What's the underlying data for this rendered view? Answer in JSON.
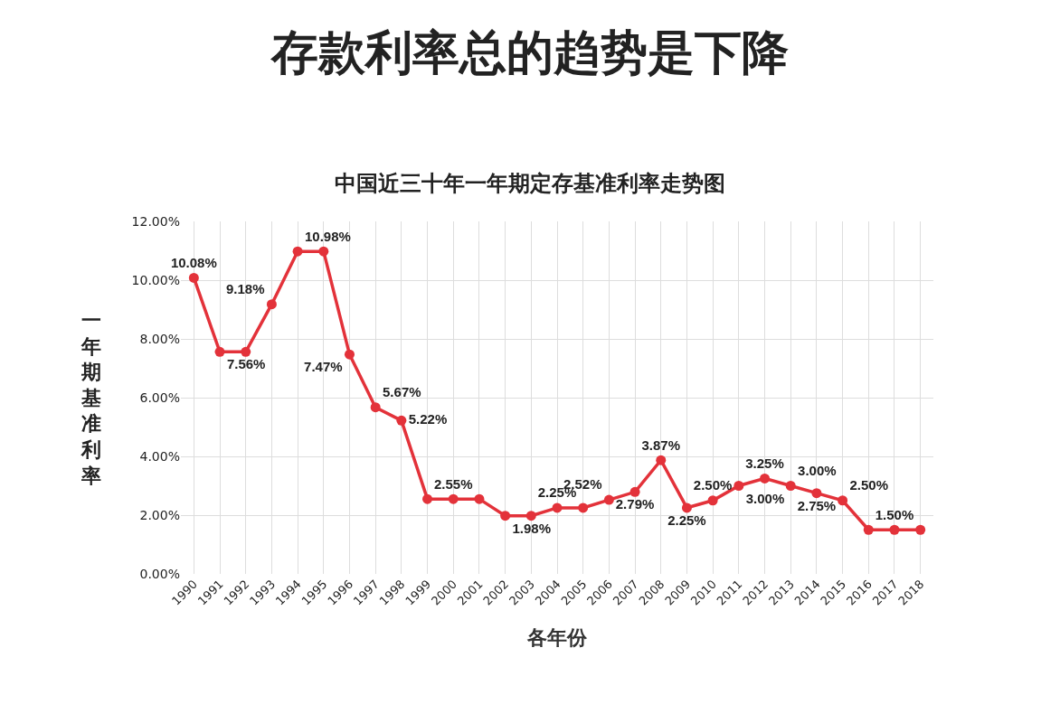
{
  "chart_data": {
    "type": "line",
    "title": "存款利率总的趋势是下降",
    "subtitle": "中国近三十年一年期定存基准利率走势图",
    "xlabel": "各年份",
    "ylabel": "一年期基准利率",
    "categories": [
      "1990",
      "1991",
      "1992",
      "1993",
      "1994",
      "1995",
      "1996",
      "1997",
      "1998",
      "1999",
      "2000",
      "2001",
      "2002",
      "2003",
      "2004",
      "2005",
      "2006",
      "2007",
      "2008",
      "2009",
      "2010",
      "2011",
      "2012",
      "2013",
      "2014",
      "2015",
      "2016",
      "2017",
      "2018"
    ],
    "series": [
      {
        "color": "#e3323a",
        "values": [
          10.08,
          7.56,
          7.56,
          9.18,
          10.98,
          10.98,
          7.47,
          5.67,
          5.22,
          2.55,
          2.55,
          2.55,
          1.98,
          1.98,
          2.25,
          2.25,
          2.52,
          2.79,
          3.87,
          2.25,
          2.5,
          3.0,
          3.25,
          3.0,
          2.75,
          2.5,
          1.5,
          1.5,
          1.5
        ],
        "value_labels": [
          "10.08%",
          "7.56%",
          null,
          "9.18%",
          "10.98%",
          null,
          "7.47%",
          "5.67%",
          "5.22%",
          null,
          "2.55%",
          null,
          "1.98%",
          null,
          "2.25%",
          null,
          "2.52%",
          "2.79%",
          "3.87%",
          "2.25%",
          "2.50%",
          "3.00%",
          "3.25%",
          "3.00%",
          "2.75%",
          "2.50%",
          null,
          "1.50%",
          null
        ]
      }
    ],
    "ylim": [
      0,
      12
    ],
    "yticks": [
      {
        "value": 0,
        "label": "0.00%"
      },
      {
        "value": 2,
        "label": "2.00%"
      },
      {
        "value": 4,
        "label": "4.00%"
      },
      {
        "value": 6,
        "label": "6.00%"
      },
      {
        "value": 8,
        "label": "8.00%"
      },
      {
        "value": 10,
        "label": "10.00%"
      },
      {
        "value": 12,
        "label": "12.00%"
      }
    ],
    "grid": true,
    "marker": "circle",
    "line_style": "solid"
  }
}
